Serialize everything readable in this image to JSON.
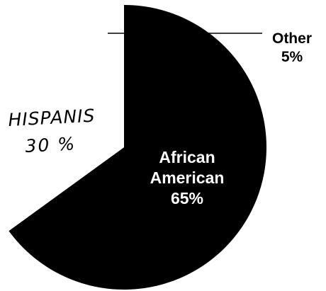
{
  "chart_data": {
    "type": "pie",
    "categories": [
      "African American",
      "Hispanic",
      "Other"
    ],
    "values": [
      65,
      30,
      5
    ],
    "labels": [
      {
        "name_lines": [
          "African",
          "American"
        ],
        "value_text": "65%"
      },
      {
        "name_lines": [
          "HISPANIS"
        ],
        "value_text": "30 %"
      },
      {
        "name_lines": [
          "Other"
        ],
        "value_text": "5%"
      }
    ],
    "colors": [
      "#000000",
      "#ffffff",
      "#ffffff"
    ],
    "start_angle_deg": 0,
    "direction": "clockwise",
    "legend": "none"
  }
}
